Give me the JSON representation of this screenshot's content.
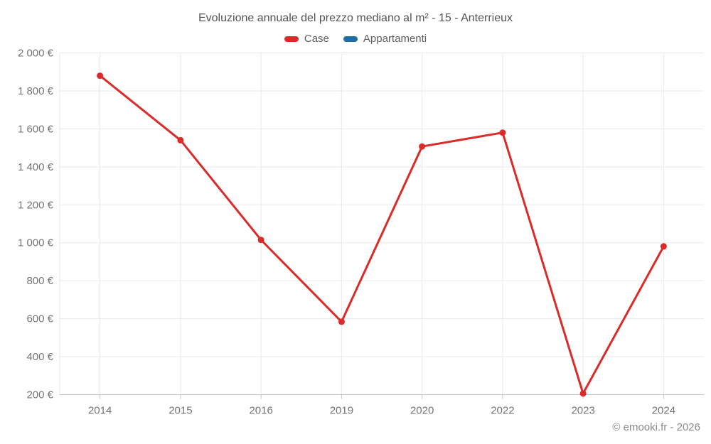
{
  "header": {
    "title": "Evoluzione annuale del prezzo mediano al m² - 15 - Anterrieux"
  },
  "legend": {
    "items": [
      {
        "label": "Case",
        "color": "#dc2a28"
      },
      {
        "label": "Appartamenti",
        "color": "#1f6fa3"
      }
    ]
  },
  "footer": {
    "credit": "© emooki.fr - 2026"
  },
  "chart_data": {
    "type": "line",
    "title": "Evoluzione annuale del prezzo mediano al m² - 15 - Anterrieux",
    "categories": [
      "2014",
      "2015",
      "2016",
      "2019",
      "2020",
      "2022",
      "2023",
      "2024"
    ],
    "series": [
      {
        "name": "Case",
        "color": "#dc2a28",
        "values": [
          1880,
          1540,
          1015,
          584,
          1507,
          1580,
          206,
          981
        ]
      },
      {
        "name": "Appartamenti",
        "color": "#1f6fa3",
        "values": []
      }
    ],
    "xlabel": "",
    "ylabel": "",
    "ylim": [
      200,
      2000
    ],
    "y_ticks": [
      {
        "value": 200,
        "label": "200 €"
      },
      {
        "value": 400,
        "label": "400 €"
      },
      {
        "value": 600,
        "label": "600 €"
      },
      {
        "value": 800,
        "label": "800 €"
      },
      {
        "value": 1000,
        "label": "1 000 €"
      },
      {
        "value": 1200,
        "label": "1 200 €"
      },
      {
        "value": 1400,
        "label": "1 400 €"
      },
      {
        "value": 1600,
        "label": "1 600 €"
      },
      {
        "value": 1800,
        "label": "1 800 €"
      },
      {
        "value": 2000,
        "label": "2 000 €"
      }
    ],
    "grid": true,
    "legend_position": "top",
    "colors": {
      "grid_line": "#e9e9e9",
      "axis_line": "#c6c6c6",
      "tick_label": "#757575"
    }
  }
}
